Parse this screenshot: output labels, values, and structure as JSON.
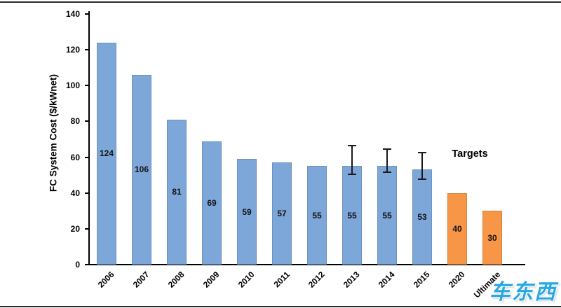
{
  "chart_data": {
    "type": "bar",
    "title": "",
    "xlabel": "",
    "ylabel": "FC System Cost ($/kWnet)",
    "ylim": [
      0,
      140
    ],
    "ytick_step": 20,
    "grid": false,
    "legend": "none",
    "categories": [
      "2006",
      "2007",
      "2008",
      "2009",
      "2010",
      "2011",
      "2012",
      "2013",
      "2014",
      "2015",
      "2020",
      "Ultimate"
    ],
    "values": [
      124,
      106,
      81,
      69,
      59,
      57,
      55,
      55,
      55,
      53,
      40,
      30
    ],
    "bar_colors": [
      "blue",
      "blue",
      "blue",
      "blue",
      "blue",
      "blue",
      "blue",
      "blue",
      "blue",
      "blue",
      "orange",
      "orange"
    ],
    "error_bars": [
      null,
      null,
      null,
      null,
      null,
      null,
      null,
      {
        "low": 51,
        "high": 66
      },
      {
        "low": 52,
        "high": 64
      },
      {
        "low": 48,
        "high": 62
      },
      null,
      null
    ],
    "annotation": "Targets",
    "colors": {
      "blue": "#7da7d9",
      "orange": "#f79646",
      "axis": "#000000"
    }
  },
  "watermark": {
    "text": "车东西"
  }
}
